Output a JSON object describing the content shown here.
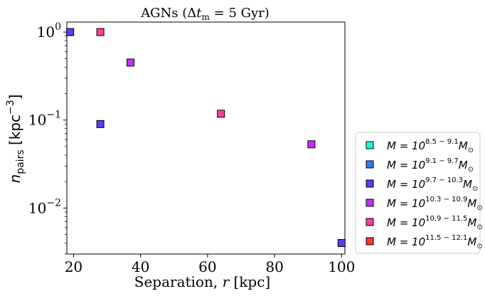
{
  "chart_data": {
    "type": "scatter",
    "title": "AGNs (Δt_m = 5 Gyr)",
    "title_parts": {
      "prefix": "AGNs (Δ",
      "t": "t",
      "sub": "m",
      "suffix": " = 5 Gyr)"
    },
    "xlabel": "Separation, r [kpc]",
    "xlabel_parts": {
      "prefix": "Separation, ",
      "var": "r",
      "suffix": " [kpc]"
    },
    "ylabel": "n_pairs [kpc^-3]",
    "ylabel_parts": {
      "n": "n",
      "sub": "pairs",
      "unit": " [kpc",
      "sup": "−3",
      "close": "]"
    },
    "xlim": [
      18,
      101
    ],
    "ylim": [
      0.003,
      1.3
    ],
    "yscale": "log",
    "x_ticks": [
      20,
      40,
      60,
      80,
      100
    ],
    "y_ticks": [
      {
        "value": 1,
        "exp": "0"
      },
      {
        "value": 0.1,
        "exp": "−1"
      },
      {
        "value": 0.01,
        "exp": "−2"
      }
    ],
    "y_tick_base": "10",
    "grid": false,
    "legend_position": "outside-right-bottom",
    "series": [
      {
        "label": {
          "base": "M = 10",
          "exp": "8.5 − 9.1",
          "tail": "M",
          "sub": "⊙"
        },
        "color": "#22f7e3",
        "points": []
      },
      {
        "label": {
          "base": "M = 10",
          "exp": "9.1 − 9.7",
          "tail": "M",
          "sub": "⊙"
        },
        "color": "#2f7cf8",
        "points": []
      },
      {
        "label": {
          "base": "M = 10",
          "exp": "9.7 − 10.3",
          "tail": "M",
          "sub": "⊙"
        },
        "color": "#5a3cf7",
        "points": [
          {
            "x": 19,
            "y": 1.0
          },
          {
            "x": 28,
            "y": 0.09
          },
          {
            "x": 100,
            "y": 0.004
          }
        ]
      },
      {
        "label": {
          "base": "M = 10",
          "exp": "10.3 − 10.9",
          "tail": "M",
          "sub": "⊙"
        },
        "color": "#c12ff6",
        "points": [
          {
            "x": 37,
            "y": 0.45
          },
          {
            "x": 91,
            "y": 0.053
          }
        ]
      },
      {
        "label": {
          "base": "M = 10",
          "exp": "10.9 − 11.5",
          "tail": "M",
          "sub": "⊙"
        },
        "color": "#f93f9d",
        "points": [
          {
            "x": 28,
            "y": 1.0
          },
          {
            "x": 64,
            "y": 0.118
          }
        ]
      },
      {
        "label": {
          "base": "M = 10",
          "exp": "11.5 − 12.1",
          "tail": "M",
          "sub": "⊙"
        },
        "color": "#f93a2c",
        "points": []
      }
    ]
  }
}
